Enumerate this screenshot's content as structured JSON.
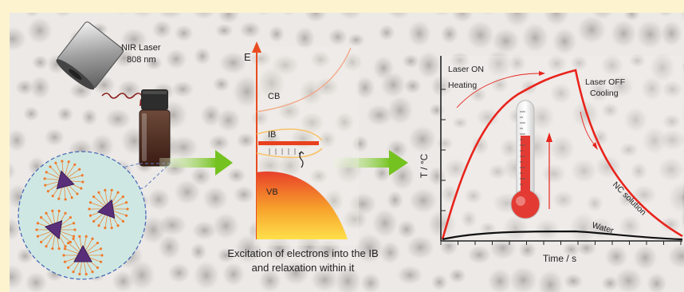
{
  "laser": {
    "label_line1": "NIR Laser",
    "label_line2": "808 nm"
  },
  "band_diagram": {
    "energy_axis": "E",
    "cb_label": "CB",
    "ib_label": "IB",
    "vb_label": "VB",
    "caption_line1": "Excitation of electrons into the IB",
    "caption_line2": "and relaxation within it"
  },
  "heating_chart": {
    "ylabel": "T / °C",
    "xlabel": "Time / s",
    "laser_on_line1": "Laser ON",
    "laser_on_line2": "Heating",
    "laser_off_line1": "Laser OFF",
    "laser_off_line2": "Cooling",
    "series_nc": "NC solution",
    "series_water": "Water"
  },
  "colors": {
    "panel_bg": "#fdf3cf",
    "tile_bg": "#ece9e6",
    "arrow_green": "#6bbf1f",
    "curve_red": "#e8241c",
    "curve_black": "#111111",
    "vb_top": "#e8402a",
    "vb_bottom": "#ffd23a"
  }
}
